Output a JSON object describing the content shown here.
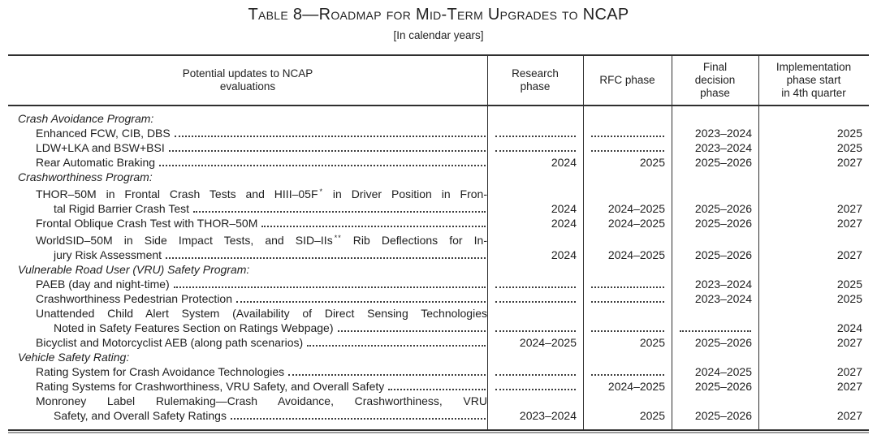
{
  "doc": {
    "title": "Table 8—Roadmap for Mid-Term Upgrades to NCAP",
    "subtitle": "[In calendar years]"
  },
  "table": {
    "headers": [
      {
        "label": "Potential updates to NCAP\nevaluations"
      },
      {
        "label": "Research\nphase"
      },
      {
        "label": "RFC phase"
      },
      {
        "label": "Final\ndecision\nphase"
      },
      {
        "label": "Implementation\nphase start\nin 4th quarter"
      }
    ],
    "rows": [
      {
        "type": "section",
        "label": "Crash Avoidance Program:"
      },
      {
        "type": "item",
        "lines": [
          {
            "text": "Enhanced FCW, CIB, DBS"
          }
        ],
        "research": null,
        "rfc": null,
        "final": "2023–2024",
        "impl": "2025"
      },
      {
        "type": "item",
        "lines": [
          {
            "text": "LDW+LKA and BSW+BSI"
          }
        ],
        "research": null,
        "rfc": null,
        "final": "2023–2024",
        "impl": "2025"
      },
      {
        "type": "item",
        "lines": [
          {
            "text": "Rear Automatic Braking"
          }
        ],
        "research": "2024",
        "rfc": "2025",
        "final": "2025–2026",
        "impl": "2027"
      },
      {
        "type": "section",
        "label": "Crashworthiness Program:"
      },
      {
        "type": "item",
        "lines": [
          {
            "pre": "THOR–50M in Frontal Crash Tests and HIII–05F",
            "sup": "*",
            "post": "in Driver Position in Fron-",
            "justify": true
          },
          {
            "text": "tal Rigid Barrier Crash Test",
            "cont": true
          }
        ],
        "research": "2024",
        "rfc": "2024–2025",
        "final": "2025–2026",
        "impl": "2027"
      },
      {
        "type": "item",
        "lines": [
          {
            "text": "Frontal Oblique Crash Test with THOR–50M"
          }
        ],
        "research": "2024",
        "rfc": "2024–2025",
        "final": "2025–2026",
        "impl": "2027"
      },
      {
        "type": "item",
        "lines": [
          {
            "pre": "WorldSID–50M in Side Impact Tests, and SID–IIs",
            "sup": "**",
            "post": "Rib Deflections for In-",
            "justify": true
          },
          {
            "text": "jury Risk Assessment",
            "cont": true
          }
        ],
        "research": "2024",
        "rfc": "2024–2025",
        "final": "2025–2026",
        "impl": "2027"
      },
      {
        "type": "section",
        "label": "Vulnerable Road User (VRU) Safety Program:"
      },
      {
        "type": "item",
        "lines": [
          {
            "text": "PAEB (day and night-time)"
          }
        ],
        "research": null,
        "rfc": null,
        "final": "2023–2024",
        "impl": "2025"
      },
      {
        "type": "item",
        "lines": [
          {
            "text": "Crashworthiness Pedestrian Protection"
          }
        ],
        "research": null,
        "rfc": null,
        "final": "2023–2024",
        "impl": "2025"
      },
      {
        "type": "item",
        "lines": [
          {
            "text": "Unattended Child Alert System (Availability of Direct Sensing Technologies",
            "justify": true
          },
          {
            "text": "Noted in Safety Features Section on Ratings Webpage)",
            "cont": true
          }
        ],
        "research": null,
        "rfc": null,
        "final": null,
        "impl": "2024"
      },
      {
        "type": "item",
        "lines": [
          {
            "text": "Bicyclist and Motorcyclist AEB (along path scenarios)"
          }
        ],
        "research": "2024–2025",
        "rfc": "2025",
        "final": "2025–2026",
        "impl": "2027"
      },
      {
        "type": "section",
        "label": "Vehicle Safety Rating:"
      },
      {
        "type": "item",
        "lines": [
          {
            "text": "Rating System for Crash Avoidance Technologies"
          }
        ],
        "research": null,
        "rfc": null,
        "final": "2024–2025",
        "impl": "2027"
      },
      {
        "type": "item",
        "lines": [
          {
            "text": "Rating Systems for Crashworthiness, VRU Safety, and Overall Safety"
          }
        ],
        "research": null,
        "rfc": "2024–2025",
        "final": "2025–2026",
        "impl": "2027"
      },
      {
        "type": "item",
        "lines": [
          {
            "text": "Monroney Label Rulemaking—Crash Avoidance, Crashworthiness, VRU",
            "justify": true
          },
          {
            "text": "Safety, and Overall Safety Ratings",
            "cont": true
          }
        ],
        "research": "2023–2024",
        "rfc": "2025",
        "final": "2025–2026",
        "impl": "2027"
      }
    ]
  }
}
